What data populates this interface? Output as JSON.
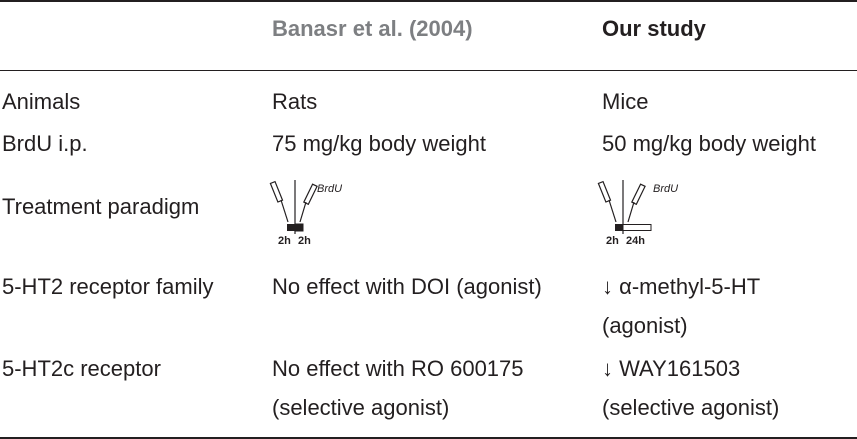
{
  "header": {
    "col2": "Banasr et al. (2004)",
    "col3": "Our study"
  },
  "rows": [
    {
      "label": "Animals",
      "banasr": [
        "Rats"
      ],
      "ours": [
        "Mice"
      ]
    },
    {
      "label": "BrdU i.p.",
      "banasr": [
        "75 mg/kg body weight"
      ],
      "ours": [
        "50 mg/kg body weight"
      ]
    },
    {
      "label": "Treatment paradigm",
      "banasr_diagram": {
        "tag": "BrdU",
        "pre": "2h",
        "post": "2h",
        "post_fill": "filled"
      },
      "ours_diagram": {
        "tag": "BrdU",
        "pre": "2h",
        "post": "24h",
        "post_fill": "open"
      }
    },
    {
      "label": "5-HT2 receptor family",
      "banasr": [
        "No effect with DOI (agonist)"
      ],
      "ours": [
        "↓ α-methyl-5-HT",
        "(agonist)"
      ]
    },
    {
      "label": "5-HT2c receptor",
      "banasr": [
        "No effect with RO 600175",
        "(selective agonist)"
      ],
      "ours": [
        "↓ WAY161503",
        "(selective agonist)"
      ]
    }
  ]
}
